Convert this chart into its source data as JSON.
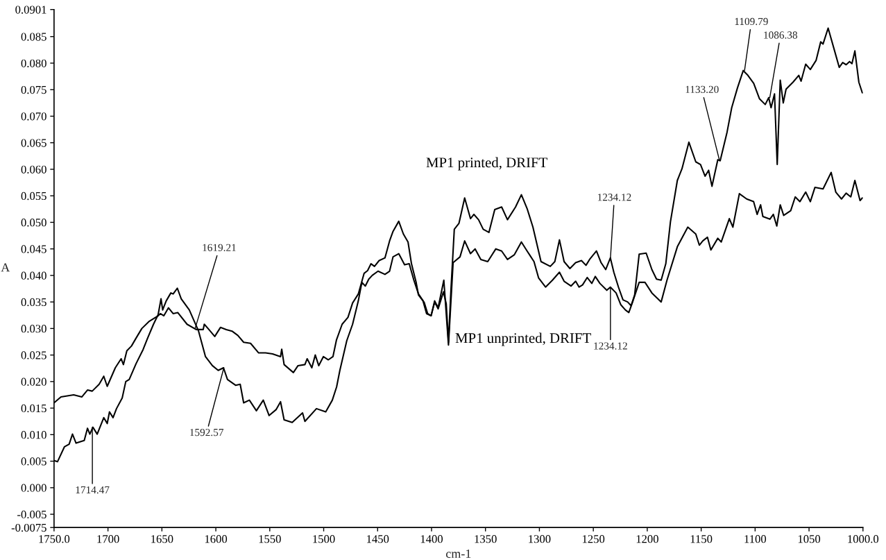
{
  "chart_data": {
    "type": "line",
    "xlabel": "cm-1",
    "ylabel": "A",
    "xlim": [
      1750,
      1000
    ],
    "ylim": [
      -0.0075,
      0.0901
    ],
    "xticks": [
      {
        "value": 1750,
        "label": "1750.0"
      },
      1700,
      1650,
      1600,
      1550,
      1500,
      1450,
      1400,
      1350,
      1300,
      1250,
      1200,
      1150,
      1100,
      1050,
      {
        "value": 1000,
        "label": "1000.0"
      }
    ],
    "yticks": [
      {
        "value": -0.0075,
        "label": "-0.0075"
      },
      {
        "value": -0.005,
        "label": "-0.005"
      },
      {
        "value": 0,
        "label": "0.000"
      },
      {
        "value": 0.005,
        "label": "0.005"
      },
      {
        "value": 0.01,
        "label": "0.010"
      },
      {
        "value": 0.015,
        "label": "0.015"
      },
      {
        "value": 0.02,
        "label": "0.020"
      },
      {
        "value": 0.025,
        "label": "0.025"
      },
      {
        "value": 0.03,
        "label": "0.030"
      },
      {
        "value": 0.035,
        "label": "0.035"
      },
      {
        "value": 0.04,
        "label": "0.040"
      },
      {
        "value": 0.045,
        "label": "0.045"
      },
      {
        "value": 0.05,
        "label": "0.050"
      },
      {
        "value": 0.055,
        "label": "0.055"
      },
      {
        "value": 0.06,
        "label": "0.060"
      },
      {
        "value": 0.065,
        "label": "0.065"
      },
      {
        "value": 0.07,
        "label": "0.070"
      },
      {
        "value": 0.075,
        "label": "0.075"
      },
      {
        "value": 0.08,
        "label": "0.080"
      },
      {
        "value": 0.085,
        "label": "0.085"
      },
      {
        "value": 0.0901,
        "label": "0.0901"
      }
    ],
    "grid": false,
    "legend": false,
    "marker": "none",
    "line_style": "solid",
    "series": [
      {
        "name": "MP1 printed, DRIFT",
        "color": "#000000",
        "x": [
          1750,
          1743.6,
          1731.8,
          1724.3,
          1719,
          1714.6,
          1708.2,
          1703.9,
          1700.7,
          1693.2,
          1687.8,
          1685.7,
          1682.5,
          1678.2,
          1673.9,
          1668.6,
          1662.1,
          1653.5,
          1651.4,
          1648.2,
          1643.9,
          1639.6,
          1635.3,
          1626.7,
          1618.2,
          1611.7,
          1610.7,
          1606.4,
          1601,
          1595.7,
          1590.3,
          1585,
          1579.6,
          1574.2,
          1567.8,
          1560.3,
          1553.9,
          1547.4,
          1540,
          1538.9,
          1536.7,
          1528.1,
          1523.8,
          1517.4,
          1515.3,
          1511,
          1507.8,
          1504.6,
          1500.3,
          1495.7,
          1491.4,
          1488.2,
          1482.9,
          1477.5,
          1473.2,
          1467.9,
          1462.5,
          1459.3,
          1456.1,
          1452.9,
          1448.6,
          1443.2,
          1438.9,
          1435.7,
          1430.4,
          1426.1,
          1421.8,
          1418.6,
          1414.3,
          1412.1,
          1407.9,
          1404.6,
          1400.4,
          1397.1,
          1393.9,
          1389,
          1386.4,
          1384.3,
          1382.1,
          1378.9,
          1374.6,
          1369.3,
          1363.9,
          1360.7,
          1356.4,
          1352.1,
          1346.8,
          1341.4,
          1335,
          1329.6,
          1322.1,
          1316.7,
          1311.4,
          1306,
          1298.5,
          1289.9,
          1285.7,
          1281.4,
          1277.1,
          1271.7,
          1266.4,
          1261,
          1256.8,
          1253.5,
          1247.1,
          1242.8,
          1238.5,
          1234.2,
          1231,
          1226.7,
          1222.5,
          1218.2,
          1215,
          1211.7,
          1207.5,
          1201,
          1195.7,
          1191.4,
          1187.1,
          1182.8,
          1178.5,
          1172.1,
          1167.8,
          1161.4,
          1155,
          1150.6,
          1146.4,
          1143.1,
          1140,
          1134.6,
          1132.4,
          1126,
          1121.7,
          1116.4,
          1111,
          1106.7,
          1101.3,
          1096,
          1090.6,
          1087.4,
          1085.2,
          1082,
          1079.5,
          1076.7,
          1073.9,
          1071.3,
          1064.9,
          1059.5,
          1057.4,
          1053.1,
          1048.8,
          1043.5,
          1039.2,
          1037,
          1032.3,
          1026.3,
          1022,
          1018.8,
          1015.6,
          1012.4,
          1010.2,
          1007.5,
          1003.8,
          1000.6
        ],
        "values": [
          0.016,
          0.0171,
          0.0175,
          0.0171,
          0.0184,
          0.0182,
          0.0195,
          0.021,
          0.0191,
          0.0226,
          0.0243,
          0.0232,
          0.0258,
          0.0267,
          0.0282,
          0.03,
          0.0313,
          0.0324,
          0.0328,
          0.0324,
          0.0339,
          0.0328,
          0.033,
          0.0308,
          0.0298,
          0.0298,
          0.0308,
          0.0298,
          0.0285,
          0.0302,
          0.0298,
          0.0295,
          0.0287,
          0.0274,
          0.0272,
          0.0254,
          0.0254,
          0.0252,
          0.0247,
          0.0261,
          0.0232,
          0.0217,
          0.023,
          0.0232,
          0.0243,
          0.0226,
          0.025,
          0.023,
          0.0247,
          0.0241,
          0.0247,
          0.0278,
          0.0308,
          0.0321,
          0.0348,
          0.0365,
          0.0404,
          0.0409,
          0.0422,
          0.0417,
          0.0428,
          0.0433,
          0.0465,
          0.0483,
          0.0502,
          0.0478,
          0.0463,
          0.0422,
          0.0387,
          0.0363,
          0.0352,
          0.0328,
          0.0324,
          0.035,
          0.0337,
          0.0369,
          0.0347,
          0.0274,
          0.0369,
          0.0487,
          0.0498,
          0.0546,
          0.0507,
          0.0515,
          0.0505,
          0.0487,
          0.0481,
          0.0524,
          0.0529,
          0.0505,
          0.0529,
          0.0552,
          0.0526,
          0.0491,
          0.0426,
          0.0417,
          0.0426,
          0.0467,
          0.0426,
          0.0413,
          0.0424,
          0.0428,
          0.0419,
          0.043,
          0.0446,
          0.0424,
          0.0411,
          0.0433,
          0.0406,
          0.0378,
          0.0354,
          0.035,
          0.0343,
          0.0363,
          0.044,
          0.0442,
          0.0411,
          0.0393,
          0.0391,
          0.0422,
          0.0501,
          0.0579,
          0.0601,
          0.0651,
          0.0614,
          0.0609,
          0.0587,
          0.0598,
          0.0568,
          0.0618,
          0.0616,
          0.067,
          0.0716,
          0.0753,
          0.0786,
          0.0777,
          0.0762,
          0.0733,
          0.0722,
          0.0735,
          0.0716,
          0.0742,
          0.0609,
          0.0768,
          0.0725,
          0.0751,
          0.0764,
          0.0777,
          0.0766,
          0.0798,
          0.0788,
          0.0805,
          0.084,
          0.0836,
          0.0866,
          0.0823,
          0.0792,
          0.0801,
          0.0797,
          0.0803,
          0.0799,
          0.0823,
          0.0764,
          0.0744
        ]
      },
      {
        "name": "MP1 unprinted, DRIFT",
        "color": "#000000",
        "x": [
          1750,
          1746.8,
          1740.4,
          1736,
          1732.9,
          1729.6,
          1722,
          1719,
          1716.8,
          1714,
          1710,
          1703.9,
          1700.7,
          1698.6,
          1695.3,
          1692.1,
          1686.8,
          1683.5,
          1680.3,
          1673.9,
          1667.5,
          1663.2,
          1657.8,
          1653.5,
          1650.8,
          1649.3,
          1646,
          1641.7,
          1639.6,
          1635.7,
          1632.1,
          1624.6,
          1620.3,
          1616,
          1609.6,
          1603.2,
          1597.8,
          1592.9,
          1589.2,
          1581.7,
          1577.4,
          1574.2,
          1568.9,
          1562.4,
          1556,
          1550.6,
          1544.2,
          1540,
          1536.7,
          1529.2,
          1519.6,
          1517.4,
          1506.7,
          1498.1,
          1492,
          1488,
          1485,
          1478.6,
          1473.2,
          1467.9,
          1464.6,
          1461.4,
          1458.2,
          1455,
          1449.6,
          1443.2,
          1438.9,
          1435.7,
          1430.4,
          1425,
          1420.7,
          1416.4,
          1412.1,
          1406.8,
          1403.6,
          1400.4,
          1397.1,
          1393.9,
          1388.6,
          1384.3,
          1380,
          1373.6,
          1369.3,
          1363.9,
          1359.6,
          1354.3,
          1347.9,
          1340.4,
          1335,
          1329.6,
          1323.2,
          1316.7,
          1311.4,
          1305,
          1300.7,
          1294.3,
          1287.9,
          1281.4,
          1277.1,
          1270.7,
          1266.4,
          1263.2,
          1260,
          1255.7,
          1251.4,
          1248.2,
          1243.9,
          1237.5,
          1234.2,
          1228.9,
          1224.6,
          1220.3,
          1217.1,
          1213.9,
          1207.5,
          1202.1,
          1195.7,
          1187.1,
          1181.7,
          1172.1,
          1162.4,
          1155,
          1151.7,
          1148.5,
          1144.2,
          1141,
          1134.6,
          1131.4,
          1123.9,
          1120.6,
          1114.6,
          1107.8,
          1101.4,
          1098.1,
          1094.9,
          1092.8,
          1086.3,
          1083.1,
          1079.9,
          1076.7,
          1073.5,
          1067,
          1062.8,
          1058.5,
          1053.1,
          1048.8,
          1044.5,
          1037,
          1029.5,
          1025.2,
          1019.9,
          1015.6,
          1011.3,
          1007.5,
          1002.7,
          1000.6
        ],
        "values": [
          0.0051,
          0.0049,
          0.0077,
          0.0082,
          0.0101,
          0.0084,
          0.0089,
          0.0112,
          0.0101,
          0.0114,
          0.0101,
          0.0132,
          0.0121,
          0.0143,
          0.0132,
          0.0149,
          0.0169,
          0.02,
          0.0204,
          0.0234,
          0.026,
          0.0282,
          0.0308,
          0.0326,
          0.0356,
          0.0335,
          0.0352,
          0.0367,
          0.0365,
          0.0376,
          0.0356,
          0.0335,
          0.0315,
          0.0295,
          0.0247,
          0.023,
          0.0221,
          0.0226,
          0.0204,
          0.0193,
          0.0195,
          0.016,
          0.0165,
          0.0145,
          0.0165,
          0.0136,
          0.0147,
          0.0162,
          0.0128,
          0.0123,
          0.0141,
          0.0125,
          0.0149,
          0.0143,
          0.0165,
          0.019,
          0.0221,
          0.0277,
          0.0308,
          0.0352,
          0.0387,
          0.038,
          0.0393,
          0.04,
          0.0408,
          0.0402,
          0.0408,
          0.0435,
          0.0441,
          0.042,
          0.0422,
          0.0391,
          0.0365,
          0.0349,
          0.0328,
          0.0324,
          0.0352,
          0.0339,
          0.0391,
          0.0269,
          0.0424,
          0.0435,
          0.0465,
          0.0441,
          0.045,
          0.043,
          0.0426,
          0.045,
          0.0446,
          0.043,
          0.0439,
          0.0463,
          0.0446,
          0.0426,
          0.0395,
          0.0378,
          0.0391,
          0.0406,
          0.0389,
          0.038,
          0.0389,
          0.0378,
          0.0382,
          0.0396,
          0.0385,
          0.0398,
          0.0385,
          0.0372,
          0.0378,
          0.0367,
          0.0345,
          0.0335,
          0.033,
          0.0348,
          0.0387,
          0.0387,
          0.0367,
          0.035,
          0.0391,
          0.0454,
          0.0491,
          0.0478,
          0.0457,
          0.0465,
          0.0472,
          0.0448,
          0.047,
          0.0463,
          0.0507,
          0.0491,
          0.0554,
          0.0544,
          0.0539,
          0.0515,
          0.0533,
          0.0511,
          0.0506,
          0.0515,
          0.0493,
          0.0533,
          0.0513,
          0.0522,
          0.0548,
          0.0539,
          0.0557,
          0.0539,
          0.0566,
          0.0563,
          0.0594,
          0.0557,
          0.0544,
          0.0555,
          0.0548,
          0.0579,
          0.0541,
          0.0546
        ]
      }
    ],
    "annotations": [
      {
        "text": "1714.47",
        "x": 1714.47,
        "y": 0.0114
      },
      {
        "text": "1619.21",
        "x": 1619.21,
        "y": 0.03
      },
      {
        "text": "1592.57",
        "x": 1592.57,
        "y": 0.0226
      },
      {
        "text": "1234.12",
        "x": 1234.12,
        "y": 0.0433
      },
      {
        "text": "1234.12",
        "x": 1234.12,
        "y": 0.0378
      },
      {
        "text": "1133.20",
        "x": 1133.2,
        "y": 0.0618
      },
      {
        "text": "1109.79",
        "x": 1109.79,
        "y": 0.0786
      },
      {
        "text": "1086.38",
        "x": 1086.38,
        "y": 0.0735
      }
    ]
  }
}
